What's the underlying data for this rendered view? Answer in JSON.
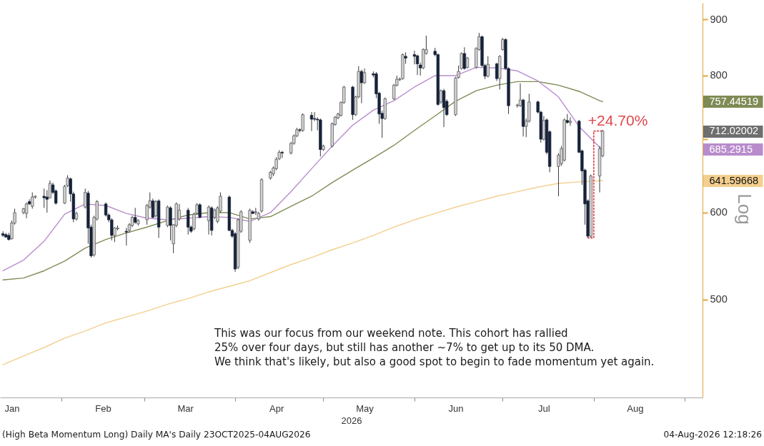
{
  "chart_data": {
    "type": "candlestick",
    "x": [
      "2026-01-12",
      "2026-01-13",
      "2026-01-14",
      "2026-01-15",
      "2026-01-16",
      "2026-01-19",
      "2026-01-20",
      "2026-01-21",
      "2026-01-22",
      "2026-01-23",
      "2026-01-26",
      "2026-01-27",
      "2026-01-28",
      "2026-01-29",
      "2026-01-30",
      "2026-02-02",
      "2026-02-03",
      "2026-02-04",
      "2026-02-05",
      "2026-02-06",
      "2026-02-09",
      "2026-02-10",
      "2026-02-11",
      "2026-02-12",
      "2026-02-13",
      "2026-02-16",
      "2026-02-17",
      "2026-02-18",
      "2026-02-19",
      "2026-02-20",
      "2026-02-23",
      "2026-02-24",
      "2026-02-25",
      "2026-02-26",
      "2026-02-27",
      "2026-03-02",
      "2026-03-03",
      "2026-03-04",
      "2026-03-05",
      "2026-03-06",
      "2026-03-09",
      "2026-03-10",
      "2026-03-11",
      "2026-03-12",
      "2026-03-13",
      "2026-03-16",
      "2026-03-17",
      "2026-03-18",
      "2026-03-19",
      "2026-03-20",
      "2026-03-23",
      "2026-03-24",
      "2026-03-25",
      "2026-03-26",
      "2026-03-27",
      "2026-03-30",
      "2026-03-31",
      "2026-04-01",
      "2026-04-02",
      "2026-04-03",
      "2026-04-06",
      "2026-04-07",
      "2026-04-08",
      "2026-04-09",
      "2026-04-10",
      "2026-04-13",
      "2026-04-14",
      "2026-04-15",
      "2026-04-16",
      "2026-04-17",
      "2026-04-20",
      "2026-04-21",
      "2026-04-22",
      "2026-04-23",
      "2026-04-24",
      "2026-04-27",
      "2026-04-28",
      "2026-04-29",
      "2026-04-30",
      "2026-05-01",
      "2026-05-04",
      "2026-05-05",
      "2026-05-06",
      "2026-05-07",
      "2026-05-08",
      "2026-05-11",
      "2026-05-12",
      "2026-05-13",
      "2026-05-14",
      "2026-05-15",
      "2026-05-18",
      "2026-05-19",
      "2026-05-20",
      "2026-05-21",
      "2026-05-22",
      "2026-05-25",
      "2026-05-26",
      "2026-05-27",
      "2026-05-28",
      "2026-05-29",
      "2026-06-01",
      "2026-06-02",
      "2026-06-03",
      "2026-06-04",
      "2026-06-05",
      "2026-06-08",
      "2026-06-09",
      "2026-06-10",
      "2026-06-11",
      "2026-06-12",
      "2026-06-15",
      "2026-06-16",
      "2026-06-17",
      "2026-06-18",
      "2026-06-19",
      "2026-06-22",
      "2026-06-23",
      "2026-06-24",
      "2026-06-25",
      "2026-06-26",
      "2026-06-29",
      "2026-06-30",
      "2026-07-01",
      "2026-07-02",
      "2026-07-03",
      "2026-07-06",
      "2026-07-07",
      "2026-07-08",
      "2026-07-09",
      "2026-07-10",
      "2026-07-13",
      "2026-07-14",
      "2026-07-15",
      "2026-07-16",
      "2026-07-17",
      "2026-07-20",
      "2026-07-21",
      "2026-07-22",
      "2026-07-23",
      "2026-07-24",
      "2026-07-27",
      "2026-07-28",
      "2026-07-29",
      "2026-07-30",
      "2026-07-31",
      "2026-08-03",
      "2026-08-04"
    ],
    "ohlc": [
      [
        574,
        577,
        570,
        572
      ],
      [
        573,
        575,
        569,
        570
      ],
      [
        572,
        575,
        566,
        567
      ],
      [
        568,
        590,
        567,
        587
      ],
      [
        587,
        605,
        585,
        600
      ],
      [
        600,
        606,
        598,
        605
      ],
      [
        599,
        613,
        593,
        611
      ],
      [
        614,
        617,
        610,
        611
      ],
      [
        608,
        626,
        605,
        620
      ],
      [
        620,
        622,
        618,
        621
      ],
      [
        621,
        631,
        606,
        619
      ],
      [
        620,
        629,
        600,
        617
      ],
      [
        619,
        642,
        618,
        638
      ],
      [
        636,
        639,
        624,
        626
      ],
      [
        628,
        630,
        610,
        612
      ],
      [
        612,
        636,
        611,
        634
      ],
      [
        635,
        649,
        633,
        645
      ],
      [
        644,
        646,
        614,
        624
      ],
      [
        624,
        627,
        588,
        592
      ],
      [
        592,
        601,
        590,
        599
      ],
      [
        607,
        631,
        605,
        626
      ],
      [
        625,
        628,
        562,
        581
      ],
      [
        582,
        585,
        546,
        548
      ],
      [
        549,
        596,
        547,
        594
      ],
      [
        592,
        616,
        590,
        614
      ],
      [
        611,
        613,
        595,
        597
      ],
      [
        597,
        599,
        588,
        591
      ],
      [
        591,
        593,
        566,
        572
      ],
      [
        572,
        582,
        564,
        581
      ],
      [
        580,
        584,
        578,
        581
      ],
      [
        577,
        581,
        560,
        576
      ],
      [
        578,
        587,
        575,
        585
      ],
      [
        584,
        596,
        582,
        594
      ],
      [
        594,
        606,
        586,
        588
      ],
      [
        586,
        592,
        584,
        590
      ],
      [
        591,
        611,
        585,
        609
      ],
      [
        607,
        626,
        605,
        615
      ],
      [
        615,
        618,
        593,
        594
      ],
      [
        596,
        616,
        594,
        614
      ],
      [
        615,
        617,
        569,
        582
      ],
      [
        584,
        609,
        582,
        607
      ],
      [
        606,
        608,
        566,
        584
      ],
      [
        562,
        586,
        551,
        585
      ],
      [
        584,
        613,
        582,
        611
      ],
      [
        592,
        611,
        590,
        603
      ],
      [
        603,
        606,
        573,
        582
      ],
      [
        582,
        584,
        575,
        577
      ],
      [
        580,
        600,
        578,
        598
      ],
      [
        599,
        612,
        597,
        610
      ],
      [
        610,
        612,
        593,
        594
      ],
      [
        590,
        609,
        573,
        607
      ],
      [
        606,
        608,
        572,
        578
      ],
      [
        594,
        605,
        592,
        603
      ],
      [
        589,
        608,
        587,
        606
      ],
      [
        602,
        626,
        600,
        621
      ],
      [
        620,
        622,
        577,
        578
      ],
      [
        578,
        580,
        569,
        571
      ],
      [
        574,
        576,
        530,
        533
      ],
      [
        535,
        593,
        533,
        591
      ],
      [
        577,
        603,
        575,
        601
      ],
      [
        566,
        605,
        563,
        603
      ],
      [
        601,
        603,
        598,
        599
      ],
      [
        600,
        606,
        597,
        601
      ],
      [
        592,
        601,
        590,
        599
      ],
      [
        602,
        645,
        600,
        643
      ],
      [
        645,
        655,
        643,
        653
      ],
      [
        651,
        661,
        648,
        659
      ],
      [
        658,
        674,
        656,
        671
      ],
      [
        672,
        684,
        670,
        681
      ],
      [
        681,
        683,
        673,
        680
      ],
      [
        680,
        696,
        678,
        694
      ],
      [
        694,
        707,
        692,
        705
      ],
      [
        705,
        717,
        703,
        714
      ],
      [
        714,
        716,
        710,
        713
      ],
      [
        713,
        739,
        711,
        737
      ],
      [
        736,
        741,
        712,
        730
      ],
      [
        731,
        741,
        727,
        730
      ],
      [
        730,
        733,
        713,
        729
      ],
      [
        729,
        731,
        675,
        685
      ],
      [
        685,
        692,
        683,
        690
      ],
      [
        690,
        725,
        688,
        723
      ],
      [
        722,
        735,
        720,
        733
      ],
      [
        732,
        740,
        730,
        738
      ],
      [
        736,
        758,
        734,
        756
      ],
      [
        756,
        783,
        754,
        781
      ],
      [
        781,
        783,
        729,
        737
      ],
      [
        737,
        767,
        735,
        765
      ],
      [
        765,
        816,
        763,
        807
      ],
      [
        807,
        810,
        755,
        788
      ],
      [
        788,
        812,
        786,
        805
      ],
      [
        803,
        807,
        797,
        801
      ],
      [
        803,
        806,
        763,
        770
      ],
      [
        771,
        773,
        723,
        738
      ],
      [
        739,
        743,
        702,
        731
      ],
      [
        731,
        764,
        729,
        762
      ],
      [
        762,
        786,
        760,
        784
      ],
      [
        784,
        800,
        782,
        794
      ],
      [
        793,
        797,
        791,
        794
      ],
      [
        795,
        838,
        793,
        836
      ],
      [
        833,
        840,
        820,
        830
      ],
      [
        836,
        843,
        819,
        833
      ],
      [
        834,
        836,
        801,
        820
      ],
      [
        818,
        822,
        800,
        813
      ],
      [
        813,
        847,
        811,
        845
      ],
      [
        838,
        870,
        836,
        845
      ],
      [
        842,
        848,
        833,
        836
      ],
      [
        836,
        838,
        751,
        753
      ],
      [
        757,
        777,
        754,
        775
      ],
      [
        775,
        778,
        718,
        748
      ],
      [
        758,
        761,
        735,
        737
      ],
      [
        737,
        798,
        735,
        796
      ],
      [
        797,
        817,
        795,
        807
      ],
      [
        812,
        840,
        810,
        838
      ],
      [
        838,
        849,
        810,
        812
      ],
      [
        814,
        832,
        812,
        830
      ],
      [
        814,
        849,
        812,
        847
      ],
      [
        845,
        875,
        843,
        868
      ],
      [
        868,
        870,
        815,
        817
      ],
      [
        817,
        820,
        794,
        799
      ],
      [
        799,
        833,
        797,
        819
      ],
      [
        820,
        822,
        791,
        795
      ],
      [
        795,
        835,
        777,
        833
      ],
      [
        845,
        866,
        843,
        863
      ],
      [
        863,
        865,
        810,
        812
      ],
      [
        812,
        814,
        738,
        751
      ],
      [
        751,
        754,
        748,
        752
      ],
      [
        751,
        787,
        749,
        760
      ],
      [
        760,
        762,
        704,
        719
      ],
      [
        719,
        731,
        703,
        727
      ],
      [
        727,
        770,
        725,
        757
      ],
      [
        757,
        759,
        739,
        741
      ],
      [
        741,
        743,
        695,
        700
      ],
      [
        700,
        735,
        698,
        728
      ],
      [
        729,
        731,
        678,
        681
      ],
      [
        711,
        713,
        653,
        661
      ],
      [
        661,
        680,
        621,
        677
      ],
      [
        665,
        690,
        662,
        686
      ],
      [
        670,
        731,
        668,
        729
      ],
      [
        728,
        738,
        723,
        725
      ],
      [
        725,
        733,
        720,
        727
      ],
      [
        727,
        729,
        680,
        681
      ],
      [
        683,
        685,
        636,
        655
      ],
      [
        656,
        658,
        585,
        611
      ],
      [
        615,
        617,
        569,
        571
      ],
      [
        571,
        650,
        569,
        648
      ],
      [
        648,
        690,
        626,
        686
      ],
      [
        676,
        714,
        674,
        712.02002
      ]
    ],
    "series": [
      {
        "type": "line",
        "color": "#7f8b55",
        "x": [
          "2026-01-12",
          "2026-01-19",
          "2026-01-26",
          "2026-02-02",
          "2026-02-09",
          "2026-02-16",
          "2026-02-23",
          "2026-03-02",
          "2026-03-09",
          "2026-03-16",
          "2026-03-23",
          "2026-03-30",
          "2026-04-06",
          "2026-04-13",
          "2026-04-20",
          "2026-04-27",
          "2026-05-04",
          "2026-05-11",
          "2026-05-18",
          "2026-05-25",
          "2026-06-01",
          "2026-06-08",
          "2026-06-15",
          "2026-06-22",
          "2026-06-29",
          "2026-07-06",
          "2026-07-13",
          "2026-07-20",
          "2026-07-27",
          "2026-08-03",
          "2026-08-04"
        ],
        "values": [
          521,
          523,
          531,
          542,
          557,
          567,
          575,
          582,
          590,
          597,
          600,
          600,
          592,
          595,
          608,
          621,
          639,
          656,
          673,
          691,
          713,
          735,
          758,
          775,
          784,
          790,
          790,
          784,
          774,
          759,
          757.44519
        ]
      },
      {
        "type": "line",
        "color": "#b88ccc",
        "x": [
          "2026-01-12",
          "2026-01-19",
          "2026-01-26",
          "2026-02-02",
          "2026-02-09",
          "2026-02-16",
          "2026-02-23",
          "2026-03-02",
          "2026-03-09",
          "2026-03-16",
          "2026-03-23",
          "2026-03-30",
          "2026-04-06",
          "2026-04-13",
          "2026-04-20",
          "2026-04-27",
          "2026-05-04",
          "2026-05-11",
          "2026-05-18",
          "2026-05-25",
          "2026-06-01",
          "2026-06-08",
          "2026-06-15",
          "2026-06-22",
          "2026-06-29",
          "2026-07-06",
          "2026-07-13",
          "2026-07-20",
          "2026-07-27",
          "2026-08-03",
          "2026-08-04"
        ],
        "values": [
          531,
          543,
          565,
          598,
          611,
          609,
          599,
          593,
          591,
          593,
          595,
          594,
          589,
          600,
          627,
          658,
          690,
          721,
          744,
          759,
          781,
          800,
          800,
          814,
          813,
          808,
          791,
          765,
          719,
          688,
          685.2915
        ]
      },
      {
        "type": "line",
        "color": "#f3cf8f",
        "x": [
          "2026-01-12",
          "2026-01-19",
          "2026-01-26",
          "2026-02-02",
          "2026-02-09",
          "2026-02-16",
          "2026-02-23",
          "2026-03-02",
          "2026-03-09",
          "2026-03-16",
          "2026-03-23",
          "2026-03-30",
          "2026-04-06",
          "2026-04-13",
          "2026-04-20",
          "2026-04-27",
          "2026-05-04",
          "2026-05-11",
          "2026-05-18",
          "2026-05-25",
          "2026-06-01",
          "2026-06-08",
          "2026-06-15",
          "2026-06-22",
          "2026-06-29",
          "2026-07-06",
          "2026-07-13",
          "2026-07-20",
          "2026-07-27",
          "2026-08-03",
          "2026-08-04"
        ],
        "values": [
          436,
          444,
          452,
          461,
          468,
          476,
          482,
          488,
          495,
          501,
          508,
          514,
          520,
          529,
          538,
          546,
          555,
          563,
          572,
          582,
          591,
          599,
          607,
          614,
          621,
          627,
          633,
          638,
          640,
          641.5,
          641.59668
        ]
      },
      {
        "type": "line",
        "color": "#e0474c",
        "line_style": "dotted",
        "x": [
          "2026-07-30",
          "2026-08-01",
          "2026-08-01",
          "2026-08-04"
        ],
        "values": [
          569,
          569,
          712.02002,
          712.02002
        ]
      }
    ],
    "xlim": [
      "2026-01-11",
      "2026-09-07"
    ],
    "xticks": [
      {
        "value": "2026-01-15",
        "label": "Jan"
      },
      {
        "value": "2026-02-01",
        "label": null
      },
      {
        "value": "2026-02-15",
        "label": "Feb"
      },
      {
        "value": "2026-03-01",
        "label": null
      },
      {
        "value": "2026-03-15",
        "label": "Mar"
      },
      {
        "value": "2026-04-01",
        "label": null
      },
      {
        "value": "2026-04-15",
        "label": "Apr"
      },
      {
        "value": "2026-05-01",
        "label": null
      },
      {
        "value": "2026-05-15",
        "label": "May"
      },
      {
        "value": "2026-06-01",
        "label": null
      },
      {
        "value": "2026-06-15",
        "label": "Jun"
      },
      {
        "value": "2026-07-01",
        "label": null
      },
      {
        "value": "2026-07-15",
        "label": "Jul"
      },
      {
        "value": "2026-08-01",
        "label": null
      },
      {
        "value": "2026-08-15",
        "label": "Aug"
      },
      {
        "value": "2026-09-01",
        "label": null
      }
    ],
    "xlabel": "2026",
    "ylim": [
      407,
      932
    ],
    "yticks": [
      500,
      600,
      641.59668,
      685.2915,
      {
        "value": 700,
        "label": null
      },
      712.02002,
      757.44519,
      800,
      900
    ],
    "ylabel": "Log",
    "log": true,
    "annotations": [
      {
        "text": "+24.70%",
        "x": "2026-08-01",
        "y": 712.02002
      },
      "This was our focus from our weekend note. This cohort has rallied\n25% over four days, but still has another ~7% to get up to its 50 DMA.\nWe think that's likely, but also a good spot to begin to fade momentum yet again.",
      "(High Beta Momentum Long) Daily MA's Daily 23OCT2025-04AUG2026",
      "04-Aug-2026 12:18:26"
    ]
  }
}
